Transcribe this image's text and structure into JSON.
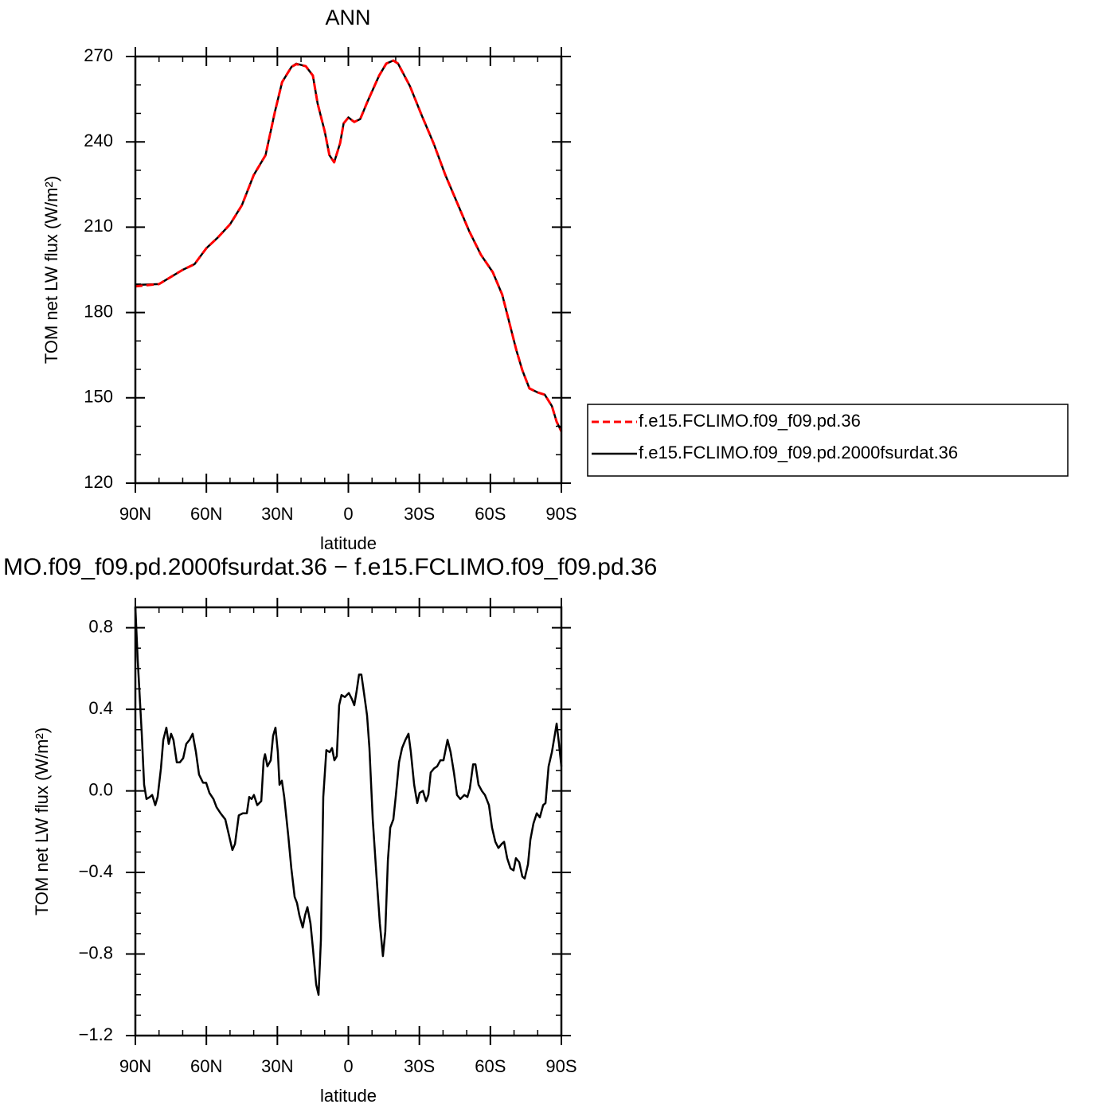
{
  "chart_data": [
    {
      "type": "line",
      "title": "ANN",
      "xlabel": "latitude",
      "ylabel": "TOM net LW flux (W/m²)",
      "x": [
        90,
        80,
        75,
        70,
        65,
        60,
        55,
        50,
        45,
        40,
        35,
        31,
        28,
        24,
        22,
        18,
        15,
        13,
        10,
        8,
        6,
        3.5,
        2,
        0,
        -2.5,
        -5,
        -8,
        -13,
        -16,
        -19,
        -21,
        -26,
        -31,
        -36,
        -41,
        -46,
        -51,
        -56,
        -61,
        -65,
        -68,
        -71,
        -73.5,
        -76.5,
        -80,
        -83,
        -86,
        -88,
        -90
      ],
      "series": [
        {
          "name": "f.e15.FCLIMO.f09_f09.pd.36",
          "color": "#ff0000",
          "line_style": "dashed",
          "values": [
            189.2,
            190.0,
            192.5,
            195.0,
            197.0,
            202.6,
            206.5,
            211.0,
            217.7,
            228.3,
            235.3,
            250.7,
            261.0,
            266.4,
            267.3,
            266.6,
            263.3,
            253.5,
            243.7,
            235.3,
            232.8,
            239.5,
            246.5,
            248.5,
            247.0,
            248.0,
            254.0,
            263.3,
            267.5,
            268.6,
            267.5,
            259.6,
            249.3,
            239.5,
            228.3,
            218.5,
            208.7,
            200.3,
            194.2,
            186.3,
            176.5,
            166.7,
            159.7,
            153.3,
            151.9,
            151.1,
            147.1,
            141.6,
            138.2
          ]
        },
        {
          "name": "f.e15.FCLIMO.f09_f09.pd.2000fsurdat.36",
          "color": "#000000",
          "line_style": "solid",
          "values": [
            189.7,
            190.0,
            192.5,
            195.0,
            197.0,
            202.6,
            206.5,
            211.0,
            217.7,
            228.3,
            235.3,
            250.7,
            261.0,
            266.4,
            267.5,
            266.6,
            263.3,
            253.5,
            243.7,
            235.3,
            232.8,
            239.5,
            246.5,
            248.6,
            247.0,
            248.0,
            254.0,
            263.3,
            267.5,
            268.6,
            267.5,
            259.6,
            249.3,
            239.5,
            228.3,
            218.5,
            208.7,
            200.3,
            194.2,
            186.3,
            176.5,
            166.7,
            159.7,
            153.3,
            151.9,
            151.1,
            147.1,
            141.6,
            138.2
          ]
        }
      ],
      "xlim": [
        90,
        -90
      ],
      "xticks": [
        {
          "value": 90,
          "label": "90N"
        },
        {
          "value": 60,
          "label": "60N"
        },
        {
          "value": 30,
          "label": "30N"
        },
        0,
        {
          "value": -30,
          "label": "30S"
        },
        {
          "value": -60,
          "label": "60S"
        },
        {
          "value": -90,
          "label": "90S"
        }
      ],
      "xminorticks": [
        80,
        70,
        50,
        40,
        20,
        10,
        -10,
        -20,
        -40,
        -50,
        -70,
        -80
      ],
      "ylim": [
        120,
        270
      ],
      "yticks": [
        120,
        150,
        180,
        210,
        240,
        270
      ],
      "yminorticks": [
        130,
        140,
        160,
        170,
        190,
        200,
        220,
        230,
        250,
        260
      ],
      "legend": "right"
    },
    {
      "type": "line",
      "title": "MO.f09_f09.pd.2000fsurdat.36 − f.e15.FCLIMO.f09_f09.pd.36",
      "xlabel": "latitude",
      "ylabel": "TOM net LW flux (W/m²)",
      "x": [
        90,
        89,
        87.3,
        86.3,
        85.3,
        83.9,
        82.9,
        81.6,
        80.6,
        79.2,
        78.2,
        76.9,
        75.9,
        74.9,
        73.9,
        72.5,
        71.2,
        69.8,
        68.5,
        67.1,
        65.8,
        64.4,
        63.1,
        61.4,
        60.1,
        58.7,
        57.0,
        55.7,
        54.0,
        52.0,
        50.6,
        49.0,
        47.9,
        46.3,
        44.6,
        42.9,
        41.9,
        40.9,
        39.9,
        38.5,
        36.8,
        35.8,
        35.2,
        34.2,
        32.8,
        31.8,
        30.8,
        29.8,
        29.1,
        28.1,
        27.1,
        25.4,
        24.1,
        22.7,
        21.7,
        20.7,
        19.3,
        18.3,
        17.3,
        16.0,
        15.0,
        13.6,
        12.6,
        11.6,
        10.6,
        9.3,
        7.9,
        6.9,
        5.9,
        4.9,
        3.9,
        2.9,
        1.5,
        -0.2,
        -1.5,
        -2.5,
        -3.5,
        -4.5,
        -5.5,
        -6.6,
        -7.9,
        -8.9,
        -10.3,
        -11.9,
        -13.3,
        -14.6,
        -15.6,
        -16.7,
        -17.7,
        -19.0,
        -20.0,
        -21.4,
        -22.7,
        -24.1,
        -25.4,
        -26.4,
        -27.8,
        -29.1,
        -30.1,
        -31.5,
        -32.8,
        -33.8,
        -34.8,
        -36.2,
        -37.5,
        -38.9,
        -40.2,
        -41.9,
        -43.2,
        -44.6,
        -45.9,
        -47.3,
        -49.0,
        -50.3,
        -51.3,
        -52.7,
        -53.7,
        -55.0,
        -56.4,
        -57.7,
        -59.4,
        -60.7,
        -62.1,
        -63.4,
        -64.8,
        -65.8,
        -67.1,
        -68.5,
        -69.8,
        -70.8,
        -72.2,
        -73.5,
        -74.5,
        -75.9,
        -76.9,
        -78.2,
        -79.6,
        -80.9,
        -82.3,
        -83.3,
        -84.6,
        -86.0,
        -87.3,
        -88.0,
        -89.0,
        -90
      ],
      "series": [
        {
          "name": "",
          "color": "#000000",
          "line_style": "solid",
          "values": [
            0.9,
            0.64,
            0.28,
            0.03,
            -0.04,
            -0.03,
            -0.02,
            -0.07,
            -0.03,
            0.11,
            0.25,
            0.31,
            0.23,
            0.28,
            0.25,
            0.14,
            0.14,
            0.16,
            0.23,
            0.25,
            0.28,
            0.19,
            0.08,
            0.04,
            0.04,
            -0.01,
            -0.04,
            -0.08,
            -0.11,
            -0.14,
            -0.21,
            -0.29,
            -0.26,
            -0.12,
            -0.11,
            -0.11,
            -0.03,
            -0.04,
            -0.02,
            -0.07,
            -0.05,
            0.15,
            0.18,
            0.12,
            0.15,
            0.27,
            0.31,
            0.19,
            0.03,
            0.05,
            -0.03,
            -0.22,
            -0.38,
            -0.52,
            -0.55,
            -0.61,
            -0.67,
            -0.61,
            -0.57,
            -0.65,
            -0.77,
            -0.95,
            -1.0,
            -0.73,
            -0.03,
            0.2,
            0.19,
            0.21,
            0.15,
            0.17,
            0.42,
            0.47,
            0.46,
            0.48,
            0.45,
            0.42,
            0.49,
            0.57,
            0.57,
            0.48,
            0.37,
            0.21,
            -0.14,
            -0.42,
            -0.65,
            -0.81,
            -0.69,
            -0.34,
            -0.18,
            -0.14,
            -0.03,
            0.14,
            0.21,
            0.25,
            0.28,
            0.19,
            0.03,
            -0.06,
            -0.01,
            0.0,
            -0.05,
            -0.02,
            0.09,
            0.11,
            0.12,
            0.15,
            0.15,
            0.25,
            0.19,
            0.09,
            -0.02,
            -0.04,
            -0.02,
            -0.03,
            0.01,
            0.13,
            0.13,
            0.03,
            0.0,
            -0.02,
            -0.07,
            -0.18,
            -0.25,
            -0.28,
            -0.26,
            -0.25,
            -0.33,
            -0.38,
            -0.39,
            -0.33,
            -0.35,
            -0.42,
            -0.43,
            -0.36,
            -0.24,
            -0.16,
            -0.11,
            -0.13,
            -0.07,
            -0.06,
            0.12,
            0.19,
            0.28,
            0.33,
            0.23,
            0.12
          ]
        }
      ],
      "xlim": [
        90,
        -90
      ],
      "xticks": [
        {
          "value": 90,
          "label": "90N"
        },
        {
          "value": 60,
          "label": "60N"
        },
        {
          "value": 30,
          "label": "30N"
        },
        0,
        {
          "value": -30,
          "label": "30S"
        },
        {
          "value": -60,
          "label": "60S"
        },
        {
          "value": -90,
          "label": "90S"
        }
      ],
      "xminorticks": [
        80,
        70,
        50,
        40,
        20,
        10,
        -10,
        -20,
        -40,
        -50,
        -70,
        -80
      ],
      "ylim": [
        -1.2,
        0.9
      ],
      "yticks": [
        {
          "value": -1.2,
          "label": "−1.2"
        },
        {
          "value": -0.8,
          "label": "−0.8"
        },
        {
          "value": -0.4,
          "label": "−0.4"
        },
        {
          "value": 0,
          "label": "0.0"
        },
        0.4,
        0.8
      ],
      "yminorticks": [
        -1.1,
        -1.0,
        -0.9,
        -0.7,
        -0.6,
        -0.5,
        -0.3,
        -0.2,
        -0.1,
        0.1,
        0.2,
        0.3,
        0.5,
        0.6,
        0.7,
        0.9
      ]
    }
  ]
}
